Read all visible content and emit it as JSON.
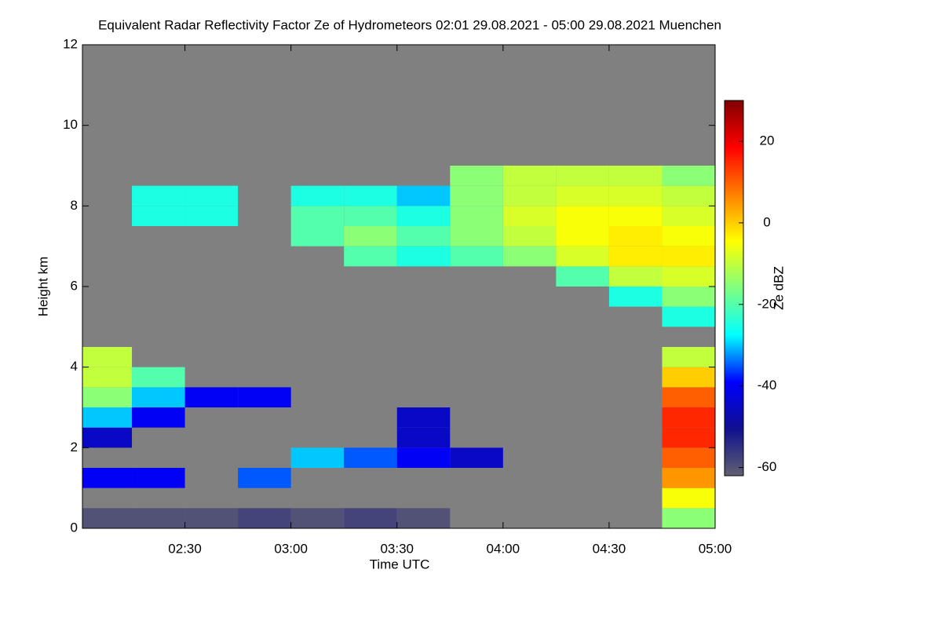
{
  "chart_data": {
    "type": "heatmap",
    "title": "Equivalent Radar Reflectivity Factor Ze of Hydrometeors   02:01 29.08.2021 - 05:00 29.08.2021 Muenchen",
    "xlabel": "Time UTC",
    "ylabel": "Height km",
    "colorbar_label": "Ze dBZ",
    "background": "#808080",
    "xlim": [
      2.0167,
      5.0
    ],
    "xticks": [
      {
        "value": 2.5,
        "label": "02:30"
      },
      {
        "value": 3.0,
        "label": "03:00"
      },
      {
        "value": 3.5,
        "label": "03:30"
      },
      {
        "value": 4.0,
        "label": "04:00"
      },
      {
        "value": 4.5,
        "label": "04:30"
      },
      {
        "value": 5.0,
        "label": "05:00"
      }
    ],
    "ylim": [
      0,
      12
    ],
    "yticks": [
      0,
      2,
      4,
      6,
      8,
      10,
      12
    ],
    "clim": [
      -62,
      30
    ],
    "cticks": [
      -60,
      -40,
      -20,
      0,
      20
    ],
    "colorscale": [
      "#606070",
      "#101090",
      "#0000ff",
      "#00ffff",
      "#80ff80",
      "#ffff00",
      "#ff8000",
      "#ff0000",
      "#800000"
    ],
    "xbins": [
      2.0167,
      2.25,
      2.5,
      2.75,
      3.0,
      3.25,
      3.5,
      3.75,
      4.0,
      4.25,
      4.5,
      4.75,
      5.0
    ],
    "ybins": [
      0,
      0.5,
      1,
      1.5,
      2,
      2.5,
      3,
      3.5,
      4,
      4.5,
      5,
      5.5,
      6,
      6.5,
      7,
      7.5,
      8,
      8.5,
      9
    ],
    "z": [
      [
        -60,
        -60,
        -60,
        -58,
        -60,
        -58,
        -60,
        null,
        null,
        null,
        null,
        -15
      ],
      [
        null,
        null,
        null,
        null,
        null,
        null,
        null,
        null,
        null,
        null,
        null,
        -5
      ],
      [
        -40,
        -40,
        null,
        -35,
        null,
        null,
        null,
        null,
        null,
        null,
        null,
        5
      ],
      [
        null,
        null,
        null,
        null,
        -30,
        -35,
        -40,
        -45,
        null,
        null,
        null,
        10
      ],
      [
        -45,
        null,
        null,
        null,
        null,
        null,
        -45,
        null,
        null,
        null,
        null,
        15
      ],
      [
        -30,
        -40,
        null,
        null,
        null,
        null,
        -45,
        null,
        null,
        null,
        null,
        15
      ],
      [
        -15,
        -30,
        -40,
        -40,
        null,
        null,
        null,
        null,
        null,
        null,
        null,
        10
      ],
      [
        -10,
        -20,
        null,
        null,
        null,
        null,
        null,
        null,
        null,
        null,
        null,
        0
      ],
      [
        -10,
        null,
        null,
        null,
        null,
        null,
        null,
        null,
        null,
        null,
        null,
        -10
      ],
      [
        null,
        null,
        null,
        null,
        null,
        null,
        null,
        null,
        null,
        null,
        null,
        null
      ],
      [
        null,
        null,
        null,
        null,
        null,
        null,
        null,
        null,
        null,
        null,
        null,
        -25
      ],
      [
        null,
        null,
        null,
        null,
        null,
        null,
        null,
        null,
        null,
        null,
        -25,
        -15
      ],
      [
        null,
        null,
        null,
        null,
        null,
        null,
        null,
        null,
        null,
        -20,
        -10,
        -8
      ],
      [
        null,
        null,
        null,
        null,
        null,
        -20,
        -25,
        -20,
        -15,
        -8,
        -3,
        -3
      ],
      [
        null,
        null,
        null,
        null,
        -20,
        -15,
        -20,
        -15,
        -10,
        -5,
        -3,
        -5
      ],
      [
        null,
        -25,
        -25,
        null,
        -20,
        -20,
        -25,
        -15,
        -8,
        -5,
        -5,
        -8
      ],
      [
        null,
        -25,
        -25,
        null,
        -25,
        -25,
        -30,
        -15,
        -10,
        -8,
        -8,
        -10
      ],
      [
        null,
        null,
        null,
        null,
        null,
        null,
        null,
        -15,
        -10,
        -10,
        -10,
        -15
      ]
    ]
  }
}
